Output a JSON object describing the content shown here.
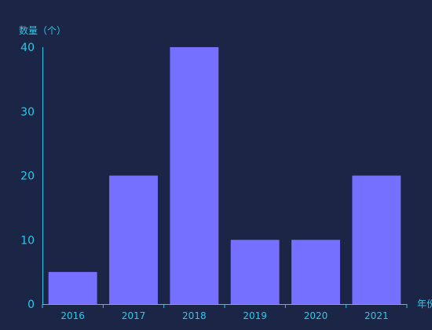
{
  "colors": {
    "background": "#1b2546",
    "axis": "#2cc9ea",
    "bar": "#7570ff"
  },
  "chart_data": {
    "type": "bar",
    "categories": [
      "2016",
      "2017",
      "2018",
      "2019",
      "2020",
      "2021"
    ],
    "values": [
      5,
      20,
      40,
      10,
      10,
      20
    ],
    "xlabel": "年份",
    "ylabel": "数量（个）",
    "ylim": [
      0,
      40
    ],
    "yticks": [
      "0",
      "10",
      "20",
      "30",
      "40"
    ],
    "grid": false,
    "legend": "none"
  }
}
